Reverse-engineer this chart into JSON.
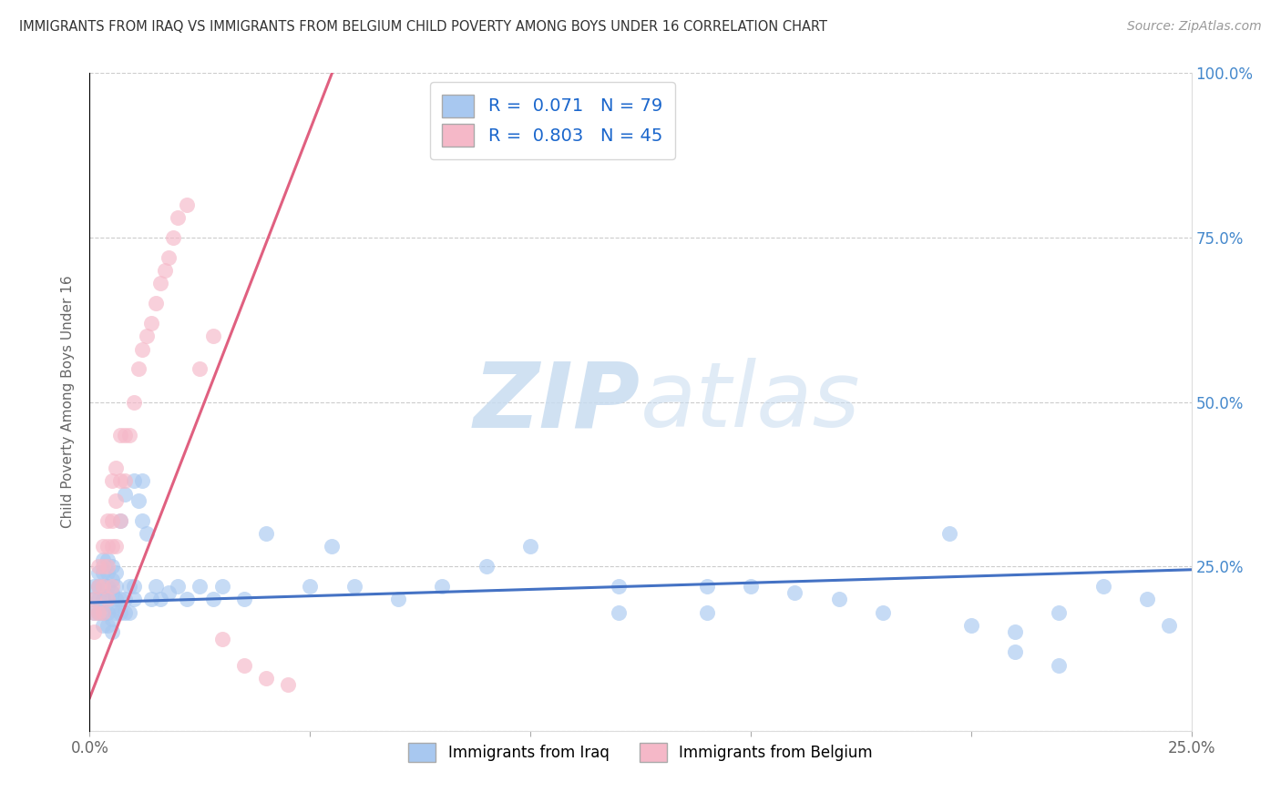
{
  "title": "IMMIGRANTS FROM IRAQ VS IMMIGRANTS FROM BELGIUM CHILD POVERTY AMONG BOYS UNDER 16 CORRELATION CHART",
  "source": "Source: ZipAtlas.com",
  "ylabel_label": "Child Poverty Among Boys Under 16",
  "legend_label1": "Immigrants from Iraq",
  "legend_label2": "Immigrants from Belgium",
  "R1": 0.071,
  "N1": 79,
  "R2": 0.803,
  "N2": 45,
  "color_iraq": "#a8c8f0",
  "color_belgium": "#f5b8c8",
  "color_iraq_line": "#4472c4",
  "color_belgium_line": "#e06080",
  "xlim": [
    0.0,
    0.25
  ],
  "ylim": [
    0.0,
    1.0
  ],
  "xticks": [
    0.0,
    0.05,
    0.1,
    0.15,
    0.2,
    0.25
  ],
  "yticks": [
    0.0,
    0.25,
    0.5,
    0.75,
    1.0
  ],
  "xtick_labels": [
    "0.0%",
    "",
    "",
    "",
    "",
    "25.0%"
  ],
  "ytick_labels_left": [
    "",
    "",
    "",
    "",
    ""
  ],
  "ytick_labels_right": [
    "",
    "25.0%",
    "50.0%",
    "75.0%",
    "100.0%"
  ],
  "watermark_zip": "ZIP",
  "watermark_atlas": "atlas",
  "background_color": "#ffffff",
  "iraq_x": [
    0.001,
    0.001,
    0.001,
    0.002,
    0.002,
    0.002,
    0.002,
    0.003,
    0.003,
    0.003,
    0.003,
    0.003,
    0.003,
    0.004,
    0.004,
    0.004,
    0.004,
    0.004,
    0.004,
    0.005,
    0.005,
    0.005,
    0.005,
    0.005,
    0.005,
    0.006,
    0.006,
    0.006,
    0.006,
    0.007,
    0.007,
    0.007,
    0.008,
    0.008,
    0.008,
    0.009,
    0.009,
    0.01,
    0.01,
    0.01,
    0.011,
    0.012,
    0.012,
    0.013,
    0.014,
    0.015,
    0.016,
    0.018,
    0.02,
    0.022,
    0.025,
    0.028,
    0.03,
    0.035,
    0.04,
    0.05,
    0.055,
    0.06,
    0.07,
    0.08,
    0.09,
    0.1,
    0.12,
    0.14,
    0.16,
    0.18,
    0.195,
    0.21,
    0.22,
    0.12,
    0.14,
    0.15,
    0.17,
    0.2,
    0.21,
    0.22,
    0.23,
    0.24,
    0.245
  ],
  "iraq_y": [
    0.18,
    0.2,
    0.22,
    0.18,
    0.2,
    0.22,
    0.24,
    0.16,
    0.18,
    0.2,
    0.22,
    0.24,
    0.26,
    0.16,
    0.18,
    0.2,
    0.22,
    0.24,
    0.26,
    0.15,
    0.17,
    0.19,
    0.21,
    0.23,
    0.25,
    0.18,
    0.2,
    0.22,
    0.24,
    0.18,
    0.2,
    0.32,
    0.18,
    0.2,
    0.36,
    0.18,
    0.22,
    0.2,
    0.22,
    0.38,
    0.35,
    0.32,
    0.38,
    0.3,
    0.2,
    0.22,
    0.2,
    0.21,
    0.22,
    0.2,
    0.22,
    0.2,
    0.22,
    0.2,
    0.3,
    0.22,
    0.28,
    0.22,
    0.2,
    0.22,
    0.25,
    0.28,
    0.22,
    0.22,
    0.21,
    0.18,
    0.3,
    0.15,
    0.1,
    0.18,
    0.18,
    0.22,
    0.2,
    0.16,
    0.12,
    0.18,
    0.22,
    0.2,
    0.16
  ],
  "belgium_x": [
    0.001,
    0.001,
    0.001,
    0.002,
    0.002,
    0.002,
    0.003,
    0.003,
    0.003,
    0.003,
    0.004,
    0.004,
    0.004,
    0.004,
    0.005,
    0.005,
    0.005,
    0.005,
    0.006,
    0.006,
    0.006,
    0.007,
    0.007,
    0.007,
    0.008,
    0.008,
    0.009,
    0.01,
    0.011,
    0.012,
    0.013,
    0.014,
    0.015,
    0.016,
    0.017,
    0.018,
    0.019,
    0.02,
    0.022,
    0.025,
    0.028,
    0.03,
    0.035,
    0.04,
    0.045
  ],
  "belgium_y": [
    0.15,
    0.18,
    0.2,
    0.18,
    0.22,
    0.25,
    0.18,
    0.22,
    0.25,
    0.28,
    0.2,
    0.25,
    0.28,
    0.32,
    0.22,
    0.28,
    0.32,
    0.38,
    0.28,
    0.35,
    0.4,
    0.32,
    0.38,
    0.45,
    0.38,
    0.45,
    0.45,
    0.5,
    0.55,
    0.58,
    0.6,
    0.62,
    0.65,
    0.68,
    0.7,
    0.72,
    0.75,
    0.78,
    0.8,
    0.55,
    0.6,
    0.14,
    0.1,
    0.08,
    0.07
  ],
  "iraq_line_x": [
    0.0,
    0.25
  ],
  "iraq_line_y": [
    0.195,
    0.245
  ],
  "belgium_line_x": [
    0.0,
    0.055
  ],
  "belgium_line_y": [
    0.05,
    1.0
  ]
}
